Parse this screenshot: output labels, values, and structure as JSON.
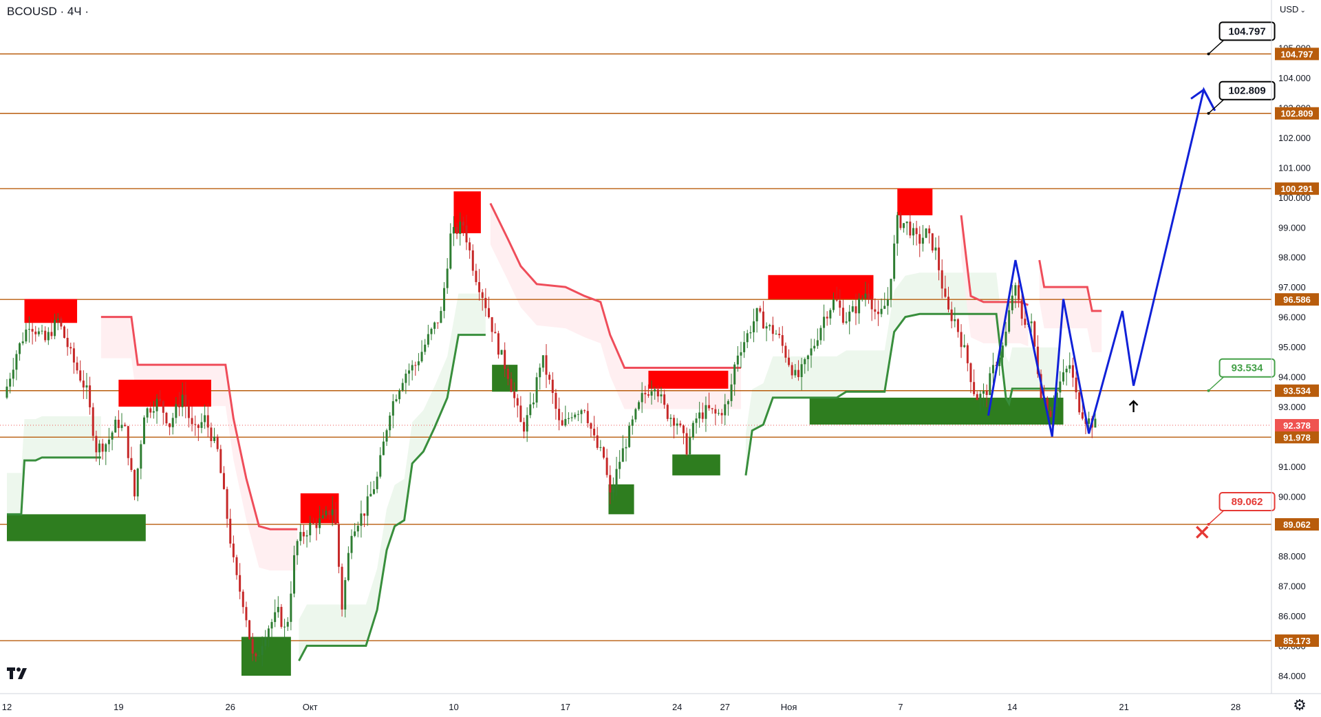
{
  "header": {
    "symbol_title": "BCOUSD · 4Ч ·",
    "currency": "USD",
    "currency_caret": "⌄"
  },
  "colors": {
    "level_line": "#b85c0c",
    "level_label_bg": "#b85c0c",
    "level_label_text": "#ffffff",
    "current_price_bg": "#ef5350",
    "bull_candle": "#2e7d32",
    "bear_candle": "#c62828",
    "supertrend_up": "#388e3c",
    "supertrend_down": "#ef4d5a",
    "up_fill": "#e8f5e9",
    "down_fill": "#ffebee",
    "supply_zone": "#ff0000",
    "demand_zone": "#2e7d1f",
    "forecast_path": "#1021d8",
    "annotation_green": "#43a047",
    "annotation_red": "#e53935"
  },
  "icons": {
    "logo": "tradingview-logo-icon",
    "settings": "gear-icon",
    "target_cross": "red-x-icon",
    "arrow": "up-arrow-icon"
  },
  "chart_data": {
    "type": "candlestick",
    "title": "BCOUSD · 4Ч ·",
    "xlabel": "",
    "ylabel": "USD",
    "ylim": [
      83.5,
      106.5
    ],
    "y_ticks": [
      "84.000",
      "85.000",
      "86.000",
      "87.000",
      "88.000",
      "89.000",
      "90.000",
      "91.000",
      "92.000",
      "93.000",
      "94.000",
      "95.000",
      "96.000",
      "97.000",
      "98.000",
      "99.000",
      "100.000",
      "101.000",
      "102.000",
      "103.000",
      "104.000",
      "105.000"
    ],
    "x_tick_labels": [
      "12",
      "19",
      "26",
      "Окт",
      "10",
      "17",
      "24",
      "27",
      "Ноя",
      "7",
      "14",
      "21",
      "28"
    ],
    "x_ticks_day": [
      0,
      7,
      14,
      19,
      28,
      35,
      42,
      45,
      49,
      56,
      63,
      70,
      77
    ],
    "x_range_day": [
      0,
      80
    ],
    "current_price": {
      "value": 92.378,
      "label": "92.378"
    },
    "horizontal_levels": [
      {
        "value": 104.797,
        "label": "104.797"
      },
      {
        "value": 102.809,
        "label": "102.809"
      },
      {
        "value": 100.291,
        "label": "100.291"
      },
      {
        "value": 96.586,
        "label": "96.586"
      },
      {
        "value": 93.534,
        "label": "93.534"
      },
      {
        "value": 91.978,
        "label": "91.978"
      },
      {
        "value": 89.062,
        "label": "89.062"
      },
      {
        "value": 85.173,
        "label": "85.173"
      }
    ],
    "callouts": [
      {
        "value": 104.797,
        "day": 75.3,
        "label": "104.797",
        "style": "black"
      },
      {
        "value": 102.809,
        "day": 75.3,
        "label": "102.809",
        "style": "black"
      },
      {
        "value": 93.534,
        "day": 75.3,
        "label": "93.534",
        "style": "green"
      },
      {
        "value": 89.062,
        "day": 75.3,
        "label": "89.062",
        "style": "red"
      }
    ],
    "supply_zones": [
      {
        "d0": 1.1,
        "d1": 4.4,
        "y0": 95.8,
        "y1": 96.6
      },
      {
        "d0": 7.0,
        "d1": 12.8,
        "y0": 93.0,
        "y1": 93.9
      },
      {
        "d0": 18.4,
        "d1": 20.8,
        "y0": 89.1,
        "y1": 90.1
      },
      {
        "d0": 28.0,
        "d1": 29.7,
        "y0": 98.8,
        "y1": 100.2
      },
      {
        "d0": 40.2,
        "d1": 45.2,
        "y0": 93.6,
        "y1": 94.2
      },
      {
        "d0": 47.7,
        "d1": 54.3,
        "y0": 96.6,
        "y1": 97.4
      },
      {
        "d0": 55.8,
        "d1": 58.0,
        "y0": 99.4,
        "y1": 100.3
      }
    ],
    "demand_zones": [
      {
        "d0": 0.0,
        "d1": 8.7,
        "y0": 88.5,
        "y1": 89.4
      },
      {
        "d0": 14.7,
        "d1": 17.8,
        "y0": 84.0,
        "y1": 85.3
      },
      {
        "d0": 30.4,
        "d1": 32.0,
        "y0": 93.5,
        "y1": 94.4
      },
      {
        "d0": 37.7,
        "d1": 39.3,
        "y0": 89.4,
        "y1": 90.4
      },
      {
        "d0": 41.7,
        "d1": 44.7,
        "y0": 90.7,
        "y1": 91.4
      },
      {
        "d0": 50.3,
        "d1": 66.2,
        "y0": 92.4,
        "y1": 93.3
      }
    ],
    "supertrend_up": [
      [
        [
          0.0,
          89.4
        ],
        [
          0.9,
          89.4
        ],
        [
          1.1,
          91.2
        ],
        [
          1.8,
          91.2
        ],
        [
          2.2,
          91.3
        ],
        [
          5.6,
          91.3
        ],
        [
          5.9,
          91.3
        ]
      ],
      [
        [
          18.3,
          84.5
        ],
        [
          18.8,
          85.0
        ],
        [
          22.5,
          85.0
        ],
        [
          23.2,
          86.2
        ],
        [
          23.8,
          88.2
        ],
        [
          24.3,
          89.0
        ],
        [
          24.9,
          89.2
        ],
        [
          25.4,
          91.1
        ],
        [
          26.1,
          91.5
        ],
        [
          26.8,
          92.3
        ],
        [
          27.6,
          93.3
        ],
        [
          28.3,
          95.4
        ],
        [
          30.0,
          95.4
        ]
      ],
      [
        [
          46.3,
          90.7
        ],
        [
          46.7,
          92.2
        ],
        [
          47.4,
          92.4
        ],
        [
          48.0,
          93.3
        ],
        [
          52.0,
          93.3
        ],
        [
          52.6,
          93.5
        ],
        [
          55.0,
          93.5
        ],
        [
          55.6,
          95.5
        ],
        [
          56.3,
          96.0
        ],
        [
          57.2,
          96.1
        ],
        [
          59.3,
          96.1
        ],
        [
          62.0,
          96.1
        ],
        [
          62.6,
          93.3
        ],
        [
          62.8,
          93.1
        ],
        [
          63.0,
          93.6
        ],
        [
          66.0,
          93.6
        ]
      ]
    ],
    "supertrend_down": [
      [
        [
          5.9,
          96.0
        ],
        [
          7.8,
          96.0
        ],
        [
          8.2,
          94.4
        ],
        [
          13.7,
          94.4
        ],
        [
          14.2,
          92.6
        ],
        [
          15.0,
          90.6
        ],
        [
          15.8,
          89.0
        ],
        [
          16.5,
          88.9
        ],
        [
          18.2,
          88.9
        ]
      ],
      [
        [
          30.3,
          99.8
        ],
        [
          31.4,
          98.6
        ],
        [
          32.2,
          97.7
        ],
        [
          33.2,
          97.1
        ],
        [
          35.0,
          97.0
        ],
        [
          36.2,
          96.7
        ],
        [
          37.2,
          96.5
        ],
        [
          37.8,
          95.4
        ],
        [
          38.7,
          94.3
        ],
        [
          41.5,
          94.3
        ],
        [
          46.0,
          94.3
        ]
      ],
      [
        [
          59.8,
          99.4
        ],
        [
          60.4,
          96.7
        ],
        [
          61.2,
          96.5
        ],
        [
          63.5,
          96.5
        ],
        [
          64.0,
          96.4
        ]
      ],
      [
        [
          64.7,
          97.9
        ],
        [
          65.0,
          97.0
        ],
        [
          65.7,
          97.0
        ],
        [
          67.7,
          97.0
        ],
        [
          68.0,
          96.2
        ],
        [
          68.6,
          96.2
        ]
      ]
    ],
    "forecast_path": [
      {
        "day": 61.5,
        "value": 92.7
      },
      {
        "day": 63.2,
        "value": 97.9
      },
      {
        "day": 65.5,
        "value": 92.0
      },
      {
        "day": 66.2,
        "value": 96.6
      },
      {
        "day": 67.8,
        "value": 92.1
      },
      {
        "day": 69.9,
        "value": 96.2
      },
      {
        "day": 70.6,
        "value": 93.7
      },
      {
        "day": 75.0,
        "value": 103.6
      },
      {
        "day": 75.7,
        "value": 102.9
      }
    ],
    "forecast_arrowhead": [
      {
        "day": 74.2,
        "value": 103.3
      },
      {
        "day": 75.0,
        "value": 103.6
      },
      {
        "day": 75.6,
        "value": 103.0
      }
    ],
    "markers": [
      {
        "type": "up-arrow",
        "day": 70.6,
        "value": 93.0
      },
      {
        "type": "x",
        "day": 74.9,
        "value": 88.8
      }
    ],
    "candles_summary": {
      "anchors": [
        [
          0.0,
          93.3
        ],
        [
          0.8,
          94.8
        ],
        [
          1.6,
          95.8
        ],
        [
          2.6,
          95.2
        ],
        [
          3.4,
          95.9
        ],
        [
          4.3,
          94.6
        ],
        [
          5.2,
          93.5
        ],
        [
          5.8,
          91.6
        ],
        [
          6.5,
          91.8
        ],
        [
          7.1,
          92.5
        ],
        [
          7.6,
          92.2
        ],
        [
          8.2,
          90.0
        ],
        [
          8.8,
          92.8
        ],
        [
          9.7,
          93.2
        ],
        [
          10.4,
          92.4
        ],
        [
          11.2,
          93.4
        ],
        [
          11.9,
          92.1
        ],
        [
          12.6,
          92.6
        ],
        [
          13.4,
          91.5
        ],
        [
          14.0,
          89.3
        ],
        [
          14.5,
          87.4
        ],
        [
          15.1,
          86.3
        ],
        [
          15.7,
          84.3
        ],
        [
          16.4,
          85.5
        ],
        [
          17.2,
          86.1
        ],
        [
          17.7,
          85.4
        ],
        [
          18.3,
          88.4
        ],
        [
          19.2,
          89.0
        ],
        [
          20.0,
          89.2
        ],
        [
          20.7,
          89.7
        ],
        [
          21.2,
          86.3
        ],
        [
          21.8,
          88.9
        ],
        [
          22.6,
          89.5
        ],
        [
          23.4,
          90.6
        ],
        [
          24.2,
          92.9
        ],
        [
          25.1,
          94.1
        ],
        [
          25.8,
          94.4
        ],
        [
          26.6,
          95.3
        ],
        [
          27.4,
          96.1
        ],
        [
          28.0,
          98.7
        ],
        [
          28.8,
          99.1
        ],
        [
          29.5,
          97.5
        ],
        [
          30.1,
          96.6
        ],
        [
          30.9,
          95.1
        ],
        [
          31.6,
          94.1
        ],
        [
          32.5,
          92.2
        ],
        [
          33.1,
          93.0
        ],
        [
          33.7,
          94.7
        ],
        [
          34.3,
          93.6
        ],
        [
          34.9,
          92.2
        ],
        [
          35.6,
          92.8
        ],
        [
          36.4,
          93.0
        ],
        [
          37.1,
          91.7
        ],
        [
          37.6,
          91.3
        ],
        [
          38.0,
          90.0
        ],
        [
          38.6,
          91.2
        ],
        [
          39.3,
          92.3
        ],
        [
          40.0,
          93.3
        ],
        [
          40.8,
          93.8
        ],
        [
          41.5,
          92.8
        ],
        [
          42.2,
          92.5
        ],
        [
          42.8,
          91.6
        ],
        [
          43.4,
          92.6
        ],
        [
          44.1,
          92.9
        ],
        [
          44.7,
          92.7
        ],
        [
          45.4,
          93.1
        ],
        [
          45.9,
          94.7
        ],
        [
          46.6,
          95.4
        ],
        [
          47.2,
          96.1
        ],
        [
          47.8,
          95.7
        ],
        [
          48.5,
          95.4
        ],
        [
          49.2,
          94.5
        ],
        [
          49.7,
          93.9
        ],
        [
          50.2,
          94.4
        ],
        [
          50.8,
          95.1
        ],
        [
          51.4,
          96.0
        ],
        [
          52.1,
          96.6
        ],
        [
          52.7,
          95.9
        ],
        [
          53.4,
          96.3
        ],
        [
          54.1,
          96.9
        ],
        [
          54.8,
          95.9
        ],
        [
          55.4,
          96.6
        ],
        [
          56.0,
          99.2
        ],
        [
          56.6,
          99.1
        ],
        [
          57.3,
          98.5
        ],
        [
          57.8,
          98.8
        ],
        [
          58.4,
          98.2
        ],
        [
          59.1,
          96.2
        ],
        [
          59.6,
          95.9
        ],
        [
          60.3,
          94.7
        ],
        [
          60.9,
          93.3
        ],
        [
          61.5,
          93.4
        ],
        [
          62.1,
          94.4
        ],
        [
          62.7,
          95.1
        ],
        [
          63.3,
          97.1
        ],
        [
          63.8,
          96.0
        ],
        [
          64.4,
          95.7
        ],
        [
          65.0,
          93.5
        ],
        [
          65.6,
          92.8
        ],
        [
          66.2,
          93.8
        ],
        [
          66.8,
          94.4
        ],
        [
          67.3,
          93.1
        ],
        [
          67.8,
          92.6
        ],
        [
          68.4,
          92.4
        ]
      ]
    }
  }
}
